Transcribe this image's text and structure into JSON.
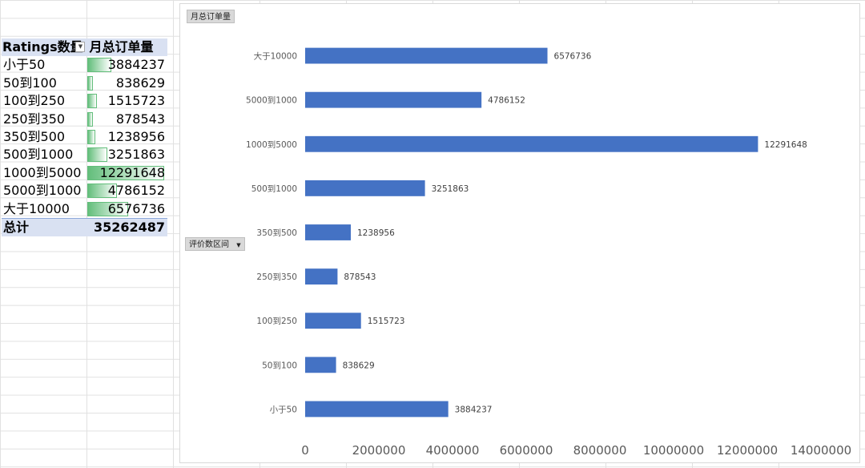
{
  "pivot_table": {
    "header": {
      "col_a": "Ratings数量",
      "col_b": "月总订单量"
    },
    "rows": [
      {
        "label": "小于50",
        "value": 3884237
      },
      {
        "label": "50到100",
        "value": 838629
      },
      {
        "label": "100到250",
        "value": 1515723
      },
      {
        "label": "250到350",
        "value": 878543
      },
      {
        "label": "350到500",
        "value": 1238956
      },
      {
        "label": "500到1000",
        "value": 3251863
      },
      {
        "label": "1000到5000",
        "value": 12291648
      },
      {
        "label": "5000到1000",
        "value": 4786152
      },
      {
        "label": "大于10000",
        "value": 6576736
      }
    ],
    "total": {
      "label": "总计",
      "value": "35262487"
    },
    "databar_color": "#63be7b"
  },
  "chart_buttons": {
    "value_field": "月总订单量",
    "axis_field": "评价数区间"
  },
  "chart_data": {
    "type": "bar",
    "orientation": "horizontal",
    "categories": [
      "小于50",
      "50到100",
      "100到250",
      "250到350",
      "350到500",
      "500到1000",
      "1000到5000",
      "5000到1000",
      "大于10000"
    ],
    "series": [
      {
        "values": [
          3884237,
          838629,
          1515723,
          878543,
          1238956,
          3251863,
          12291648,
          4786152,
          6576736
        ]
      }
    ],
    "xlim": [
      0,
      14000000
    ],
    "xticks": [
      0,
      2000000,
      4000000,
      6000000,
      8000000,
      10000000,
      12000000,
      14000000
    ],
    "data_labels": true,
    "grid": false,
    "legend": "none",
    "bar_color": "#4472c4"
  }
}
